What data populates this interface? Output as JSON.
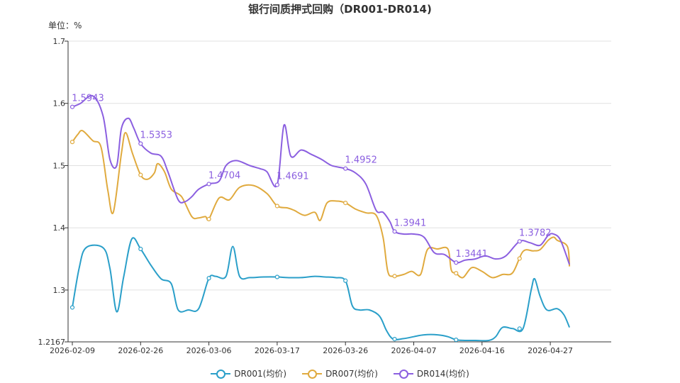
{
  "chart_data": {
    "type": "line",
    "title": "银行间质押式回购（DR001-DR014)",
    "unit_label": "单位：%",
    "ylim": [
      1.2167,
      1.7
    ],
    "y_ticks": [
      "1.2167",
      "1.3",
      "1.4",
      "1.5",
      "1.6",
      "1.7"
    ],
    "x_ticks": [
      "2026-02-09",
      "2026-02-26",
      "2026-03-06",
      "2026-03-17",
      "2026-03-26",
      "2026-04-07",
      "2026-04-16",
      "2026-04-27"
    ],
    "grid": true,
    "legend_position": "bottom",
    "series": [
      {
        "name": "DR001(均价)",
        "color": "#2a9fc9",
        "values": [
          [
            0,
            1.272
          ],
          [
            0.1,
            1.335
          ],
          [
            0.2,
            1.368
          ],
          [
            0.45,
            1.368
          ],
          [
            0.55,
            1.335
          ],
          [
            0.65,
            1.265
          ],
          [
            0.75,
            1.32
          ],
          [
            0.87,
            1.382
          ],
          [
            1.0,
            1.366
          ],
          [
            1.15,
            1.34
          ],
          [
            1.3,
            1.318
          ],
          [
            1.45,
            1.31
          ],
          [
            1.55,
            1.268
          ],
          [
            1.7,
            1.268
          ],
          [
            1.85,
            1.27
          ],
          [
            2.0,
            1.319
          ],
          [
            2.1,
            1.322
          ],
          [
            2.25,
            1.322
          ],
          [
            2.35,
            1.37
          ],
          [
            2.45,
            1.322
          ],
          [
            2.6,
            1.32
          ],
          [
            2.8,
            1.321
          ],
          [
            3.0,
            1.321
          ],
          [
            3.15,
            1.32
          ],
          [
            3.35,
            1.32
          ],
          [
            3.55,
            1.322
          ],
          [
            3.7,
            1.321
          ],
          [
            3.85,
            1.32
          ],
          [
            4.0,
            1.315
          ],
          [
            4.1,
            1.275
          ],
          [
            4.2,
            1.268
          ],
          [
            4.35,
            1.268
          ],
          [
            4.5,
            1.258
          ],
          [
            4.6,
            1.235
          ],
          [
            4.7,
            1.221
          ],
          [
            4.85,
            1.222
          ],
          [
            5.0,
            1.225
          ],
          [
            5.15,
            1.228
          ],
          [
            5.35,
            1.228
          ],
          [
            5.5,
            1.225
          ],
          [
            5.62,
            1.22
          ],
          [
            5.75,
            1.219
          ],
          [
            5.9,
            1.219
          ],
          [
            6.1,
            1.219
          ],
          [
            6.2,
            1.225
          ],
          [
            6.3,
            1.24
          ],
          [
            6.45,
            1.238
          ],
          [
            6.6,
            1.238
          ],
          [
            6.72,
            1.3
          ],
          [
            6.77,
            1.318
          ],
          [
            6.85,
            1.29
          ],
          [
            6.95,
            1.268
          ],
          [
            7.1,
            1.27
          ],
          [
            7.2,
            1.26
          ],
          [
            7.28,
            1.24
          ]
        ]
      },
      {
        "name": "DR007(均价)",
        "color": "#e0aa3e",
        "values": [
          [
            0,
            1.538
          ],
          [
            0.08,
            1.55
          ],
          [
            0.15,
            1.556
          ],
          [
            0.3,
            1.54
          ],
          [
            0.42,
            1.53
          ],
          [
            0.52,
            1.46
          ],
          [
            0.6,
            1.425
          ],
          [
            0.72,
            1.52
          ],
          [
            0.78,
            1.553
          ],
          [
            0.88,
            1.52
          ],
          [
            1.0,
            1.485
          ],
          [
            1.1,
            1.478
          ],
          [
            1.2,
            1.488
          ],
          [
            1.25,
            1.503
          ],
          [
            1.35,
            1.49
          ],
          [
            1.45,
            1.462
          ],
          [
            1.6,
            1.45
          ],
          [
            1.75,
            1.418
          ],
          [
            1.85,
            1.416
          ],
          [
            1.95,
            1.418
          ],
          [
            2.0,
            1.414
          ],
          [
            2.15,
            1.448
          ],
          [
            2.3,
            1.445
          ],
          [
            2.45,
            1.465
          ],
          [
            2.65,
            1.468
          ],
          [
            2.85,
            1.455
          ],
          [
            3.0,
            1.435
          ],
          [
            3.15,
            1.432
          ],
          [
            3.25,
            1.428
          ],
          [
            3.4,
            1.42
          ],
          [
            3.55,
            1.425
          ],
          [
            3.63,
            1.412
          ],
          [
            3.73,
            1.44
          ],
          [
            3.87,
            1.443
          ],
          [
            4.0,
            1.44
          ],
          [
            4.15,
            1.43
          ],
          [
            4.3,
            1.424
          ],
          [
            4.45,
            1.42
          ],
          [
            4.55,
            1.385
          ],
          [
            4.62,
            1.33
          ],
          [
            4.7,
            1.322
          ],
          [
            4.85,
            1.325
          ],
          [
            4.97,
            1.33
          ],
          [
            5.1,
            1.325
          ],
          [
            5.2,
            1.365
          ],
          [
            5.35,
            1.366
          ],
          [
            5.5,
            1.366
          ],
          [
            5.55,
            1.332
          ],
          [
            5.62,
            1.327
          ],
          [
            5.72,
            1.32
          ],
          [
            5.85,
            1.336
          ],
          [
            6.0,
            1.33
          ],
          [
            6.15,
            1.32
          ],
          [
            6.3,
            1.325
          ],
          [
            6.45,
            1.328
          ],
          [
            6.6,
            1.362
          ],
          [
            6.75,
            1.363
          ],
          [
            6.85,
            1.365
          ],
          [
            6.97,
            1.38
          ],
          [
            7.05,
            1.385
          ],
          [
            7.1,
            1.38
          ],
          [
            7.25,
            1.37
          ],
          [
            7.28,
            1.338
          ]
        ]
      },
      {
        "name": "DR014(均价)",
        "color": "#8b5fe0",
        "values": [
          [
            0,
            1.5943
          ],
          [
            0.12,
            1.6
          ],
          [
            0.3,
            1.612
          ],
          [
            0.45,
            1.58
          ],
          [
            0.55,
            1.51
          ],
          [
            0.65,
            1.5
          ],
          [
            0.72,
            1.56
          ],
          [
            0.82,
            1.576
          ],
          [
            0.9,
            1.56
          ],
          [
            1.0,
            1.5353
          ],
          [
            1.15,
            1.52
          ],
          [
            1.3,
            1.515
          ],
          [
            1.4,
            1.49
          ],
          [
            1.55,
            1.445
          ],
          [
            1.65,
            1.442
          ],
          [
            1.75,
            1.45
          ],
          [
            1.85,
            1.462
          ],
          [
            2.0,
            1.4704
          ],
          [
            2.15,
            1.475
          ],
          [
            2.25,
            1.5
          ],
          [
            2.4,
            1.508
          ],
          [
            2.6,
            1.5
          ],
          [
            2.75,
            1.495
          ],
          [
            2.85,
            1.49
          ],
          [
            3.0,
            1.4691
          ],
          [
            3.1,
            1.565
          ],
          [
            3.2,
            1.515
          ],
          [
            3.35,
            1.525
          ],
          [
            3.5,
            1.518
          ],
          [
            3.65,
            1.51
          ],
          [
            3.8,
            1.5
          ],
          [
            4.0,
            1.4952
          ],
          [
            4.15,
            1.488
          ],
          [
            4.3,
            1.47
          ],
          [
            4.45,
            1.428
          ],
          [
            4.55,
            1.425
          ],
          [
            4.65,
            1.41
          ],
          [
            4.72,
            1.3941
          ],
          [
            4.85,
            1.39
          ],
          [
            5.0,
            1.39
          ],
          [
            5.15,
            1.385
          ],
          [
            5.3,
            1.36
          ],
          [
            5.45,
            1.357
          ],
          [
            5.62,
            1.3441
          ],
          [
            5.75,
            1.348
          ],
          [
            5.9,
            1.35
          ],
          [
            6.05,
            1.355
          ],
          [
            6.2,
            1.35
          ],
          [
            6.35,
            1.355
          ],
          [
            6.55,
            1.3782
          ],
          [
            6.7,
            1.376
          ],
          [
            6.85,
            1.372
          ],
          [
            6.97,
            1.388
          ],
          [
            7.05,
            1.39
          ],
          [
            7.15,
            1.38
          ],
          [
            7.28,
            1.341
          ]
        ]
      }
    ],
    "markers": [
      {
        "series": 0,
        "x": [
          0,
          1.0,
          2.0,
          3.0,
          4.0,
          4.72,
          5.62,
          6.55
        ]
      },
      {
        "series": 1,
        "x": [
          0,
          1.0,
          2.0,
          3.0,
          4.0,
          4.72,
          5.62,
          6.55
        ]
      },
      {
        "series": 2,
        "x": [
          0,
          1.0,
          2.0,
          3.0,
          4.0,
          4.72,
          5.62,
          6.55
        ]
      }
    ],
    "annotations": [
      {
        "text": "1.5943",
        "x": 0,
        "y": 1.5943
      },
      {
        "text": "1.5353",
        "x": 1.0,
        "y": 1.5353
      },
      {
        "text": "1.4704",
        "x": 2.0,
        "y": 1.4704
      },
      {
        "text": "1.4691",
        "x": 3.0,
        "y": 1.4691
      },
      {
        "text": "1.4952",
        "x": 4.0,
        "y": 1.4952
      },
      {
        "text": "1.3941",
        "x": 4.72,
        "y": 1.3941
      },
      {
        "text": "1.3441",
        "x": 5.62,
        "y": 1.3441
      },
      {
        "text": "1.3782",
        "x": 6.55,
        "y": 1.3782
      }
    ]
  }
}
